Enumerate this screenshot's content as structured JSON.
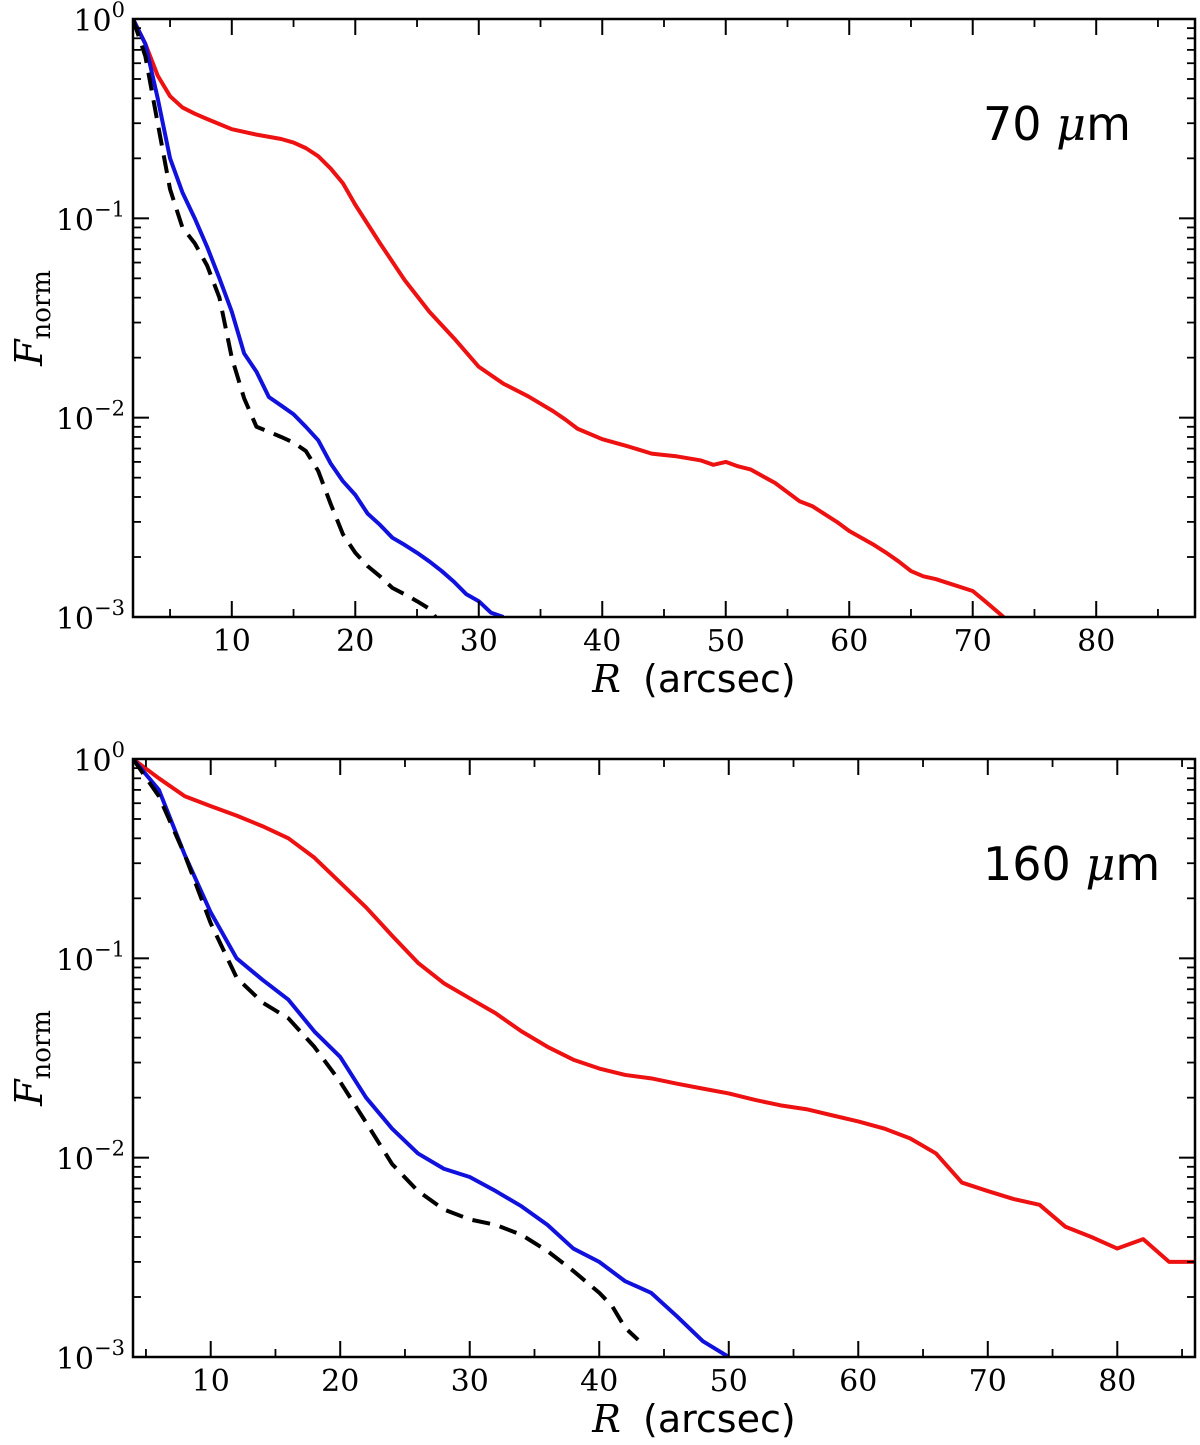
{
  "chart_data": [
    {
      "type": "line",
      "panel_label": "70",
      "panel_unit_mu": "μ",
      "panel_unit_m": "m",
      "xlabel_var": "R",
      "xlabel_unit": "(arcsec)",
      "ylabel_var": "F",
      "ylabel_sub": "norm",
      "xscale": "linear",
      "yscale": "log",
      "xlim": [
        2,
        88
      ],
      "ylim": [
        0.001,
        1
      ],
      "xticks": [
        10,
        20,
        30,
        40,
        50,
        60,
        70,
        80
      ],
      "xtick_labels": [
        "10",
        "20",
        "30",
        "40",
        "50",
        "60",
        "70",
        "80"
      ],
      "yticks": [
        {
          "value": 1,
          "base": "10",
          "exp": "0"
        },
        {
          "value": 0.1,
          "base": "10",
          "exp": "−1"
        },
        {
          "value": 0.01,
          "base": "10",
          "exp": "−2"
        },
        {
          "value": 0.001,
          "base": "10",
          "exp": "−3"
        }
      ],
      "series": [
        {
          "name": "red",
          "color": "#ee1111",
          "dash": "none",
          "x": [
            2,
            3,
            4,
            5,
            6,
            7,
            8,
            10,
            12,
            14,
            15,
            16,
            17,
            18,
            19,
            20,
            22,
            24,
            26,
            28,
            30,
            32,
            34,
            36,
            37,
            38,
            40,
            42,
            43,
            44,
            45,
            46,
            48,
            49,
            50,
            51,
            52,
            54,
            56,
            57,
            59,
            60,
            62,
            63,
            64,
            65,
            66,
            67,
            68,
            70,
            71,
            72.5
          ],
          "y": [
            1.0,
            0.75,
            0.52,
            0.41,
            0.36,
            0.335,
            0.315,
            0.28,
            0.263,
            0.25,
            0.24,
            0.225,
            0.205,
            0.178,
            0.15,
            0.117,
            0.075,
            0.049,
            0.034,
            0.025,
            0.018,
            0.0148,
            0.0128,
            0.0108,
            0.0098,
            0.0088,
            0.0078,
            0.0072,
            0.0069,
            0.0066,
            0.0065,
            0.0064,
            0.0061,
            0.0058,
            0.006,
            0.0057,
            0.0055,
            0.0047,
            0.0038,
            0.0036,
            0.003,
            0.0027,
            0.0023,
            0.0021,
            0.0019,
            0.0017,
            0.0016,
            0.00155,
            0.00148,
            0.00135,
            0.0012,
            0.001
          ]
        },
        {
          "name": "blue",
          "color": "#1111dd",
          "dash": "none",
          "x": [
            2,
            3,
            4,
            5,
            6,
            7,
            8,
            9,
            10,
            11,
            12,
            13,
            14,
            15,
            16,
            17,
            18,
            19,
            20,
            21,
            22,
            23,
            24,
            25,
            26,
            27,
            28,
            29,
            30,
            31,
            32
          ],
          "y": [
            1.0,
            0.75,
            0.4,
            0.2,
            0.135,
            0.1,
            0.072,
            0.05,
            0.034,
            0.021,
            0.017,
            0.0127,
            0.0115,
            0.0104,
            0.009,
            0.0077,
            0.0059,
            0.0048,
            0.0041,
            0.0033,
            0.0029,
            0.0025,
            0.0023,
            0.0021,
            0.0019,
            0.0017,
            0.0015,
            0.0013,
            0.0012,
            0.00105,
            0.001
          ]
        },
        {
          "name": "black",
          "color": "#000000",
          "dash": "18 10",
          "x": [
            2,
            3,
            4,
            5,
            6,
            7,
            8,
            9,
            10,
            11,
            12,
            13,
            14,
            15,
            16,
            17,
            18,
            19,
            20,
            21,
            22,
            23,
            24,
            25,
            26,
            26.5
          ],
          "y": [
            1.0,
            0.65,
            0.3,
            0.14,
            0.09,
            0.075,
            0.058,
            0.04,
            0.02,
            0.0125,
            0.009,
            0.0085,
            0.008,
            0.0075,
            0.0068,
            0.0054,
            0.0037,
            0.0026,
            0.0021,
            0.0018,
            0.0016,
            0.0014,
            0.0013,
            0.0012,
            0.0011,
            0.001
          ]
        }
      ]
    },
    {
      "type": "line",
      "panel_label": "160",
      "panel_unit_mu": "μ",
      "panel_unit_m": "m",
      "xlabel_var": "R",
      "xlabel_unit": "(arcsec)",
      "ylabel_var": "F",
      "ylabel_sub": "norm",
      "xscale": "linear",
      "yscale": "log",
      "xlim": [
        4,
        86
      ],
      "ylim": [
        0.001,
        1
      ],
      "xticks": [
        10,
        20,
        30,
        40,
        50,
        60,
        70,
        80
      ],
      "xtick_labels": [
        "10",
        "20",
        "30",
        "40",
        "50",
        "60",
        "70",
        "80"
      ],
      "yticks": [
        {
          "value": 1,
          "base": "10",
          "exp": "0"
        },
        {
          "value": 0.1,
          "base": "10",
          "exp": "−1"
        },
        {
          "value": 0.01,
          "base": "10",
          "exp": "−2"
        },
        {
          "value": 0.001,
          "base": "10",
          "exp": "−3"
        }
      ],
      "series": [
        {
          "name": "red",
          "color": "#ee1111",
          "dash": "none",
          "x": [
            4,
            6,
            8,
            10,
            12,
            14,
            16,
            18,
            20,
            22,
            24,
            26,
            28,
            30,
            32,
            34,
            36,
            38,
            40,
            42,
            44,
            46,
            48,
            50,
            52,
            54,
            56,
            58,
            60,
            62,
            64,
            66,
            68,
            70,
            72,
            74,
            76,
            78,
            80,
            82,
            84,
            86
          ],
          "y": [
            1.0,
            0.8,
            0.65,
            0.58,
            0.52,
            0.46,
            0.4,
            0.32,
            0.24,
            0.18,
            0.13,
            0.095,
            0.075,
            0.063,
            0.053,
            0.043,
            0.036,
            0.031,
            0.028,
            0.026,
            0.025,
            0.0235,
            0.0222,
            0.021,
            0.0195,
            0.0183,
            0.0175,
            0.0163,
            0.0152,
            0.014,
            0.0125,
            0.0105,
            0.0075,
            0.0068,
            0.0062,
            0.0058,
            0.0045,
            0.004,
            0.0035,
            0.0039,
            0.003,
            0.003
          ]
        },
        {
          "name": "blue",
          "color": "#1111dd",
          "dash": "none",
          "x": [
            4,
            6,
            8,
            10,
            12,
            14,
            16,
            18,
            20,
            22,
            24,
            26,
            28,
            30,
            32,
            34,
            36,
            38,
            40,
            42,
            44,
            46,
            48,
            50
          ],
          "y": [
            1.0,
            0.7,
            0.33,
            0.17,
            0.1,
            0.078,
            0.062,
            0.043,
            0.032,
            0.02,
            0.014,
            0.0105,
            0.0088,
            0.008,
            0.0068,
            0.0057,
            0.0046,
            0.0035,
            0.003,
            0.0024,
            0.0021,
            0.0016,
            0.0012,
            0.001
          ]
        },
        {
          "name": "black",
          "color": "#000000",
          "dash": "18 10",
          "x": [
            4,
            6,
            8,
            10,
            12,
            14,
            16,
            18,
            20,
            22,
            24,
            26,
            28,
            30,
            32,
            34,
            36,
            38,
            40,
            41,
            42,
            43
          ],
          "y": [
            1.0,
            0.65,
            0.33,
            0.15,
            0.08,
            0.06,
            0.05,
            0.036,
            0.024,
            0.015,
            0.0093,
            0.0068,
            0.0055,
            0.0049,
            0.0046,
            0.0041,
            0.0034,
            0.0027,
            0.0021,
            0.0018,
            0.0014,
            0.00122
          ]
        }
      ]
    }
  ]
}
